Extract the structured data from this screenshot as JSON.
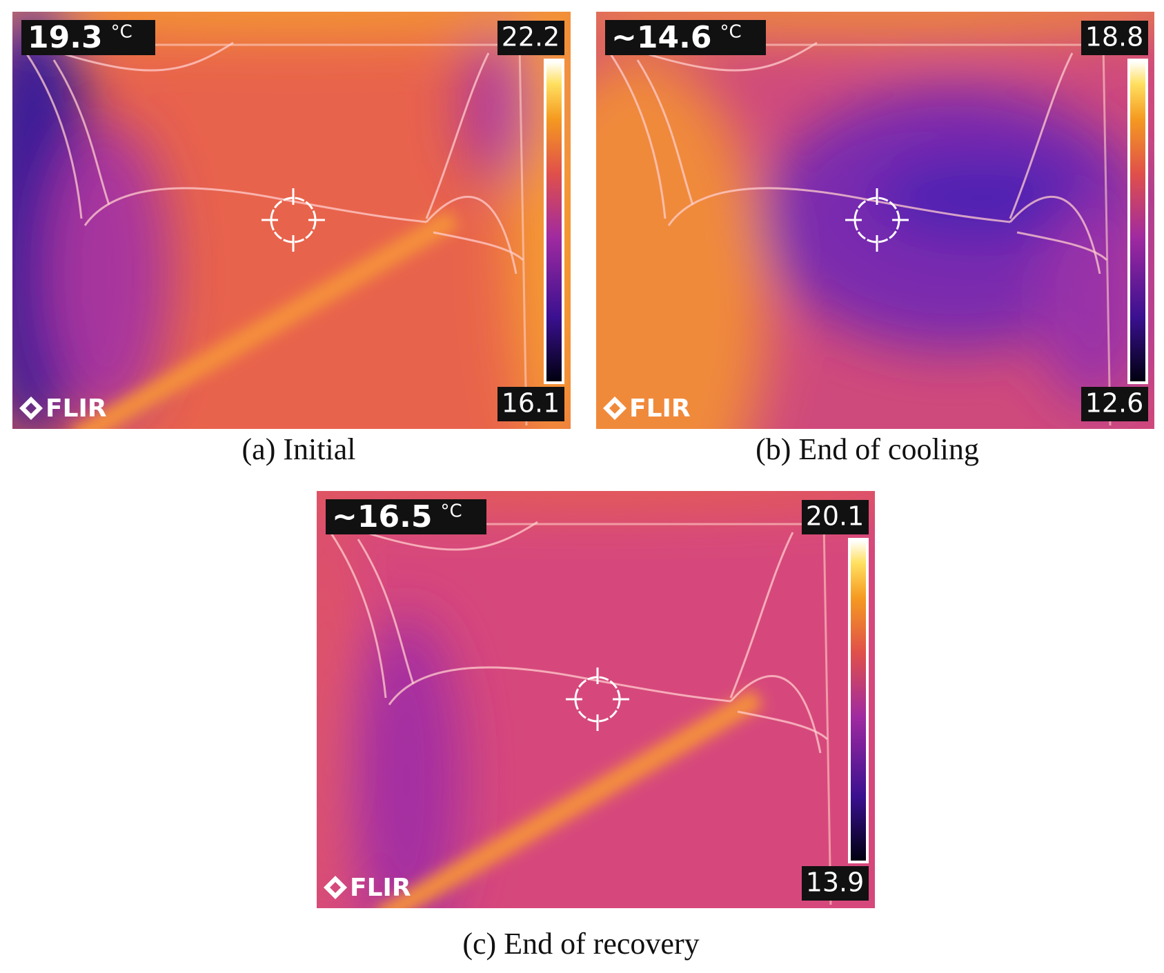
{
  "panels": [
    {
      "spot": "19.3",
      "unit": "°C",
      "scale_max": "22.2",
      "scale_min": "16.1",
      "logo": "FLIR",
      "caption": "(a) Initial"
    },
    {
      "spot": "~14.6",
      "unit": "°C",
      "scale_max": "18.8",
      "scale_min": "12.6",
      "logo": "FLIR",
      "caption": "(b) End of cooling"
    },
    {
      "spot": "~16.5",
      "unit": "°C",
      "scale_max": "20.1",
      "scale_min": "13.9",
      "logo": "FLIR",
      "caption": "(c) End of recovery"
    }
  ]
}
